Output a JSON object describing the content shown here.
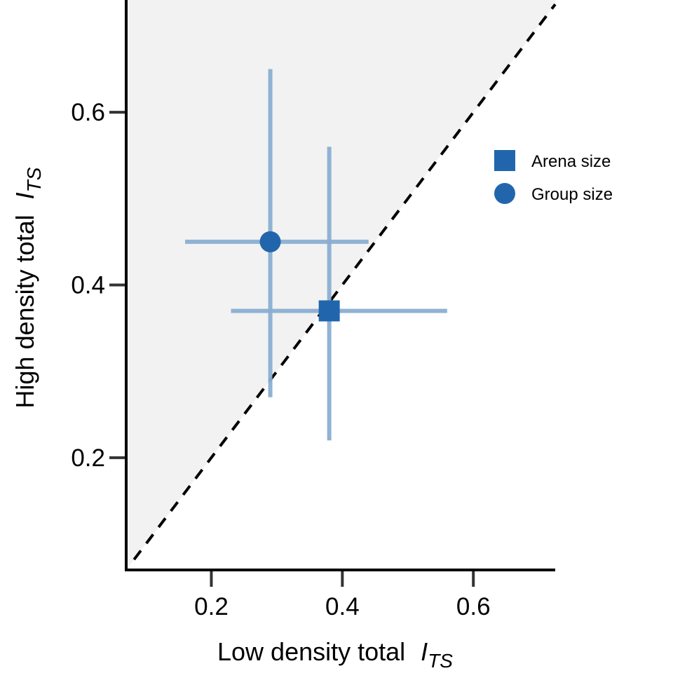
{
  "chart_data": {
    "type": "scatter",
    "title": "",
    "xlabel": "Low density total",
    "xlabel_symbol": "I",
    "xlabel_subscript": "TS",
    "ylabel": "High density total",
    "ylabel_symbol": "I",
    "ylabel_subscript": "TS",
    "xlim": [
      0.07,
      0.725
    ],
    "ylim": [
      0.07,
      0.73
    ],
    "xticks": [
      0.2,
      0.4,
      0.6
    ],
    "yticks": [
      0.2,
      0.4,
      0.6
    ],
    "xtick_labels": [
      "0.2",
      "0.4",
      "0.6"
    ],
    "ytick_labels": [
      "0.2",
      "0.4",
      "0.6"
    ],
    "grid": false,
    "reference_line": {
      "type": "identity",
      "label": "y = x",
      "style": "dashed",
      "color": "#000000"
    },
    "shaded_region": {
      "description": "area above identity line",
      "color": "#f2f2f2"
    },
    "legend_position": "right",
    "series": [
      {
        "name": "Arena size",
        "marker": "square",
        "color": "#2166ac",
        "errorbar_color": "#8aaed2",
        "x": 0.38,
        "y": 0.37,
        "x_err": [
          0.23,
          0.56
        ],
        "y_err": [
          0.22,
          0.56
        ]
      },
      {
        "name": "Group size",
        "marker": "circle",
        "color": "#2166ac",
        "errorbar_color": "#8aaed2",
        "x": 0.29,
        "y": 0.45,
        "x_err": [
          0.16,
          0.44
        ],
        "y_err": [
          0.27,
          0.65
        ]
      }
    ]
  }
}
